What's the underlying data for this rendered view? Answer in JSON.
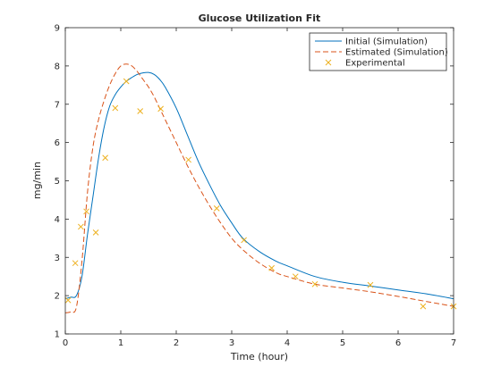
{
  "chart_data": {
    "type": "line",
    "title": "Glucose Utilization Fit",
    "xlabel": "Time (hour)",
    "ylabel": "mg/min",
    "xlim": [
      0,
      7
    ],
    "ylim": [
      1,
      9
    ],
    "xticks": [
      0,
      1,
      2,
      3,
      4,
      5,
      6,
      7
    ],
    "yticks": [
      1,
      2,
      3,
      4,
      5,
      6,
      7,
      8,
      9
    ],
    "grid": false,
    "legend_position": "top-right",
    "series": [
      {
        "name": "Initial (Simulation)",
        "style": "solid line",
        "color": "#0072BD",
        "x": [
          0,
          0.1,
          0.2,
          0.3,
          0.4,
          0.5,
          0.6,
          0.7,
          0.8,
          0.9,
          1.0,
          1.1,
          1.2,
          1.3,
          1.4,
          1.5,
          1.6,
          1.7,
          1.8,
          2.0,
          2.2,
          2.4,
          2.6,
          2.8,
          3.0,
          3.2,
          3.5,
          3.8,
          4.0,
          4.5,
          5.0,
          5.5,
          6.0,
          6.5,
          7.0
        ],
        "y": [
          1.92,
          1.96,
          2.0,
          2.5,
          3.6,
          4.6,
          5.6,
          6.4,
          6.95,
          7.25,
          7.45,
          7.6,
          7.7,
          7.78,
          7.82,
          7.83,
          7.78,
          7.65,
          7.45,
          6.9,
          6.2,
          5.5,
          4.9,
          4.35,
          3.9,
          3.5,
          3.15,
          2.9,
          2.78,
          2.5,
          2.35,
          2.25,
          2.15,
          2.05,
          1.92
        ]
      },
      {
        "name": "Estimated (Simulation)",
        "style": "dashed line",
        "color": "#D95319",
        "x": [
          0,
          0.1,
          0.2,
          0.3,
          0.4,
          0.5,
          0.6,
          0.7,
          0.8,
          0.9,
          1.0,
          1.1,
          1.2,
          1.3,
          1.4,
          1.5,
          1.6,
          1.7,
          1.8,
          2.0,
          2.2,
          2.4,
          2.6,
          2.8,
          3.0,
          3.2,
          3.5,
          3.8,
          4.0,
          4.5,
          5.0,
          5.5,
          6.0,
          6.5,
          7.0
        ],
        "y": [
          1.55,
          1.58,
          1.7,
          2.9,
          4.7,
          5.9,
          6.6,
          7.1,
          7.5,
          7.8,
          8.0,
          8.05,
          8.0,
          7.85,
          7.65,
          7.45,
          7.2,
          6.9,
          6.6,
          6.0,
          5.4,
          4.85,
          4.35,
          3.9,
          3.5,
          3.2,
          2.85,
          2.6,
          2.5,
          2.3,
          2.2,
          2.1,
          1.98,
          1.85,
          1.72
        ]
      },
      {
        "name": "Experimental",
        "style": "x markers",
        "color": "#EDB120",
        "x": [
          0.05,
          0.18,
          0.28,
          0.38,
          0.55,
          0.72,
          0.9,
          1.1,
          1.35,
          1.72,
          2.22,
          2.73,
          3.22,
          3.72,
          4.15,
          4.5,
          5.5,
          6.45,
          7.0
        ],
        "y": [
          1.88,
          2.85,
          3.8,
          4.2,
          3.65,
          5.6,
          6.9,
          7.6,
          6.82,
          6.88,
          5.55,
          4.28,
          3.45,
          2.72,
          2.5,
          2.3,
          2.28,
          1.72,
          1.72
        ]
      }
    ]
  }
}
